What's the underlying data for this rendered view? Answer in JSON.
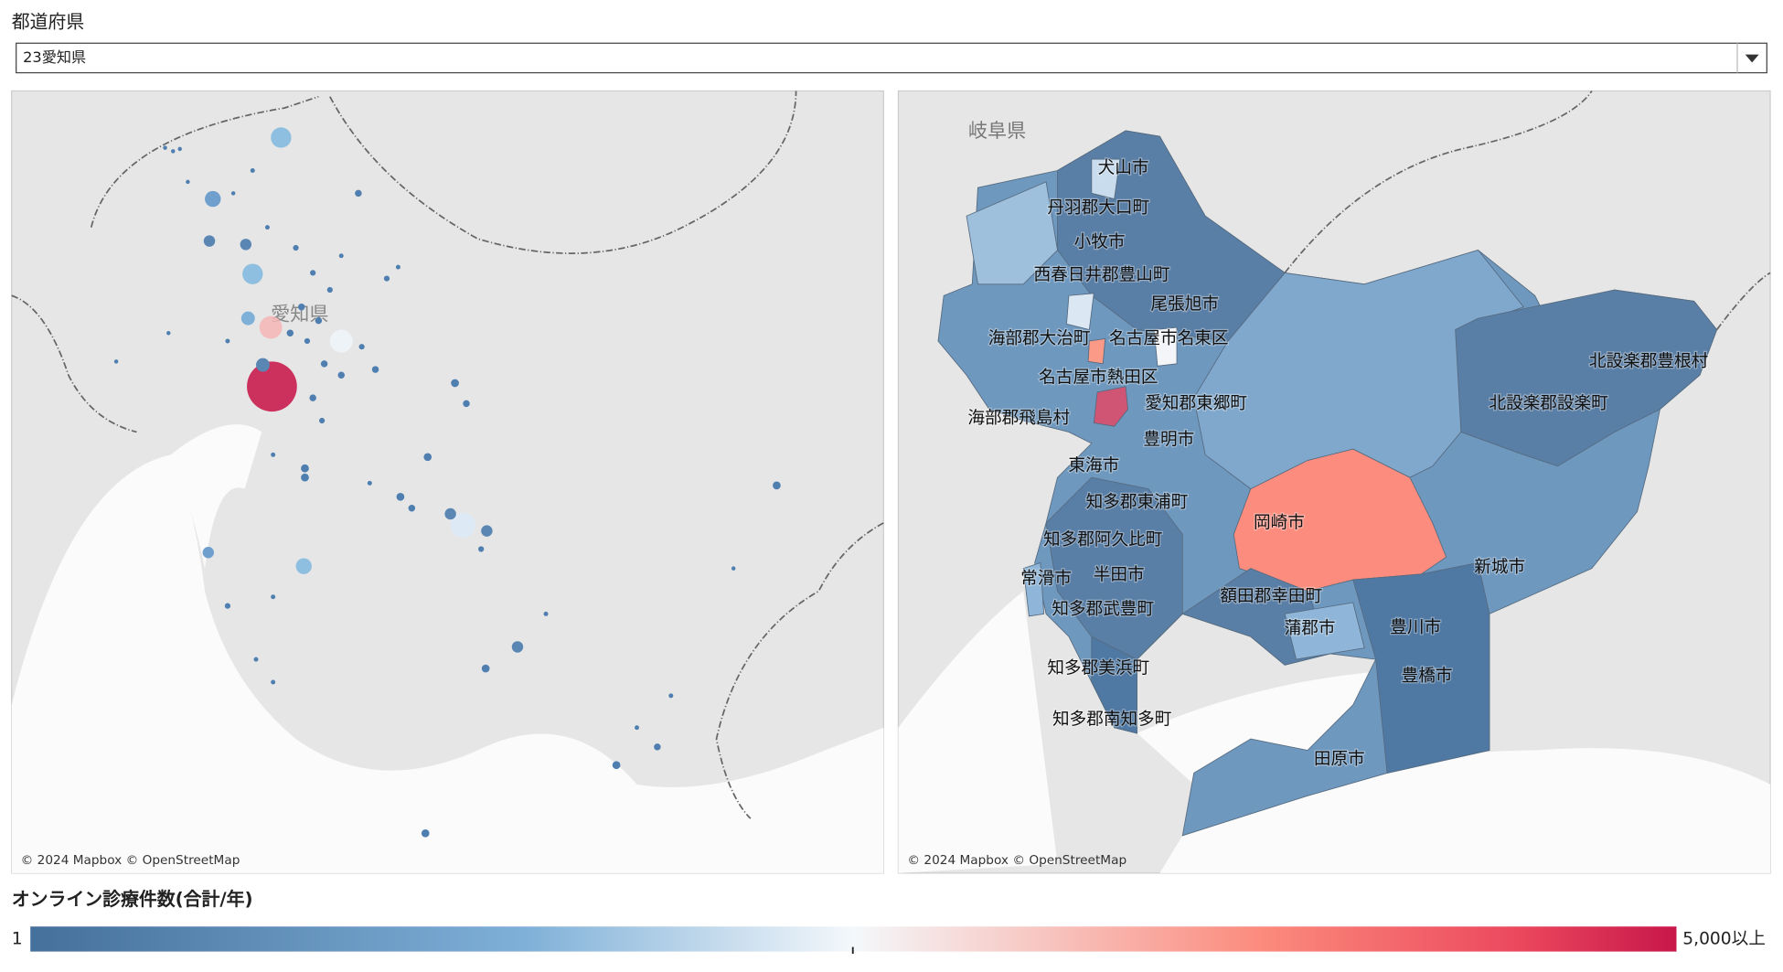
{
  "filter": {
    "label": "都道府県",
    "value": "23愛知県"
  },
  "maps": [
    {
      "labels": [
        "愛知県"
      ],
      "attribution": "© 2024 Mapbox © OpenStreetMap"
    },
    {
      "labels": [
        "岐阜県",
        "犬山市",
        "丹羽郡大口町",
        "小牧市",
        "西春日井郡豊山町",
        "尾張旭市",
        "海部郡大治町",
        "名古屋市名東区",
        "北設楽郡豊根村",
        "名古屋市熱田区",
        "北設楽郡設楽町",
        "愛知郡東郷町",
        "海部郡飛島村",
        "豊明市",
        "東海市",
        "知多郡東浦町",
        "岡崎市",
        "知多郡阿久比町",
        "新城市",
        "常滑市",
        "半田市",
        "額田郡幸田町",
        "知多郡武豊町",
        "蒲郡市",
        "豊川市",
        "知多郡美浜町",
        "豊橋市",
        "知多郡南知多町",
        "田原市"
      ],
      "attribution": "© 2024 Mapbox © OpenStreetMap"
    }
  ],
  "legend": {
    "title": "オンライン診療件数(合計/年)",
    "min": 1,
    "max": {
      "value": 5000,
      "label": "5,000以上"
    }
  }
}
